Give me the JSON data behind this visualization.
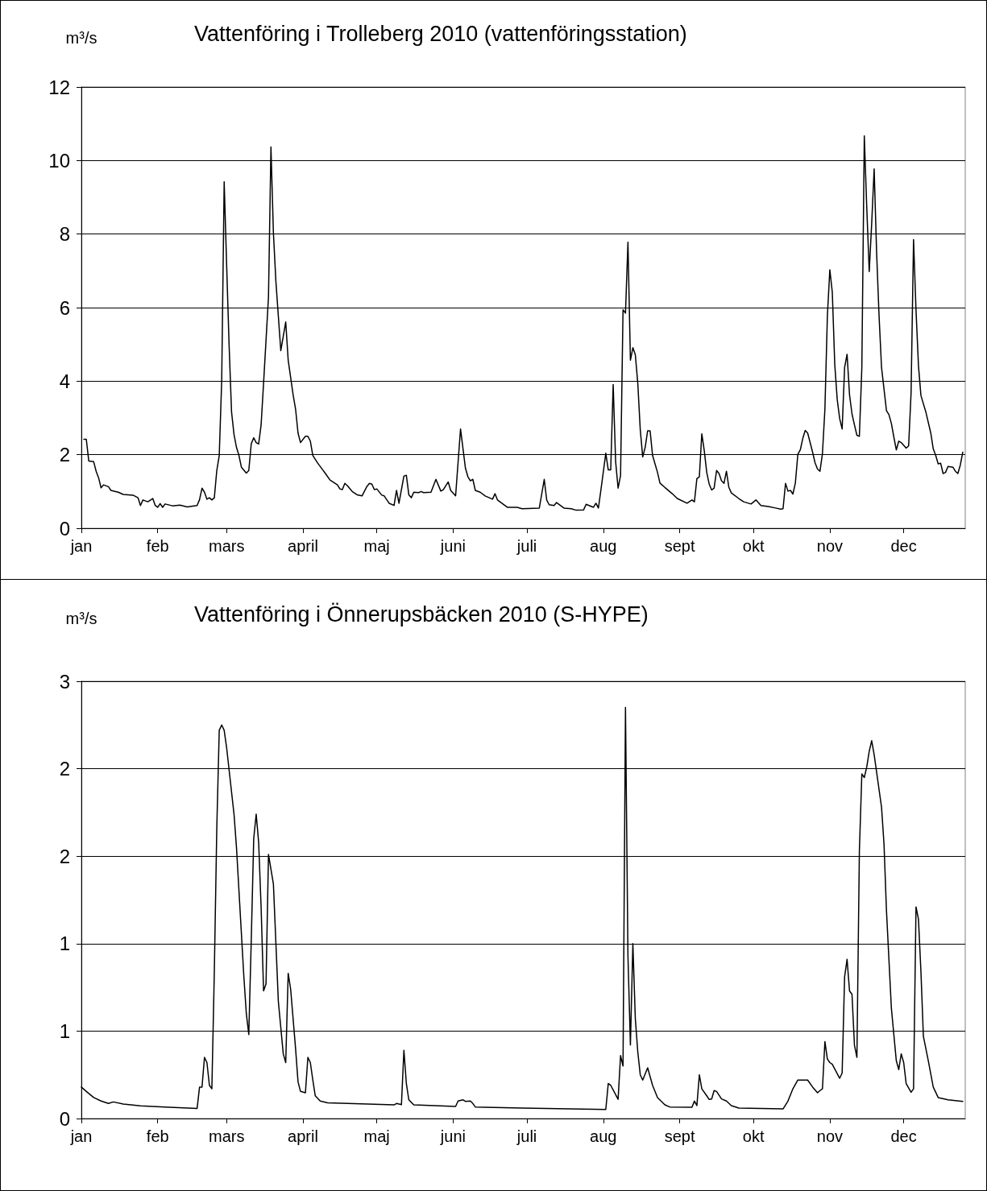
{
  "chart_data": [
    {
      "type": "line",
      "title": "Vattenföring i Trolleberg 2010 (vattenföringsstation)",
      "ylabel": "m³/s",
      "x": [
        "--01-02",
        "--01-03",
        "--01-04",
        "--01-06",
        "--01-07",
        "--01-08",
        "--01-09",
        "--01-10",
        "--01-12",
        "--01-13",
        "--01-16",
        "--01-18",
        "--01-22",
        "--01-24",
        "--01-25",
        "--01-26",
        "--01-28",
        "--01-30",
        "--01-31",
        "--02-01",
        "--02-02",
        "--02-03",
        "--02-04",
        "--02-07",
        "--02-10",
        "--02-13",
        "--02-17",
        "--02-18",
        "--02-19",
        "--02-20",
        "--02-21",
        "--02-22",
        "--02-23",
        "--02-24",
        "--02-25",
        "--02-26",
        "--02-27",
        "--02-28",
        "--03-01",
        "--03-02",
        "--03-03",
        "--03-04",
        "--03-05",
        "--03-06",
        "--03-07",
        "--03-09",
        "--03-10",
        "--03-11",
        "--03-12",
        "--03-13",
        "--03-14",
        "--03-15",
        "--03-16",
        "--03-18",
        "--03-19",
        "--03-20",
        "--03-21",
        "--03-22",
        "--03-23",
        "--03-25",
        "--03-26",
        "--03-28",
        "--03-29",
        "--03-30",
        "--03-31",
        "--04-02",
        "--04-03",
        "--04-04",
        "--04-05",
        "--04-07",
        "--04-09",
        "--04-10",
        "--04-12",
        "--04-15",
        "--04-16",
        "--04-17",
        "--04-18",
        "--04-19",
        "--04-21",
        "--04-23",
        "--04-25",
        "--04-27",
        "--04-28",
        "--04-29",
        "--04-30",
        "--05-01",
        "--05-03",
        "--05-04",
        "--05-06",
        "--05-08",
        "--05-09",
        "--05-10",
        "--05-12",
        "--05-13",
        "--05-14",
        "--05-15",
        "--05-16",
        "--05-18",
        "--05-19",
        "--05-20",
        "--05-23",
        "--05-25",
        "--05-27",
        "--05-28",
        "--05-30",
        "--05-31",
        "--06-02",
        "--06-04",
        "--06-06",
        "--06-07",
        "--06-08",
        "--06-09",
        "--06-10",
        "--06-12",
        "--06-14",
        "--06-17",
        "--06-18",
        "--06-19",
        "--06-23",
        "--06-27",
        "--06-29",
        "--07-06",
        "--07-08",
        "--07-09",
        "--07-10",
        "--07-12",
        "--07-13",
        "--07-16",
        "--07-19",
        "--07-21",
        "--07-24",
        "--07-25",
        "--07-28",
        "--07-29",
        "--07-30",
        "--07-31",
        "--08-02",
        "--08-03",
        "--08-04",
        "--08-05",
        "--08-06",
        "--08-07",
        "--08-08",
        "--08-09",
        "--08-10",
        "--08-11",
        "--08-12",
        "--08-13",
        "--08-14",
        "--08-15",
        "--08-16",
        "--08-17",
        "--08-18",
        "--08-19",
        "--08-20",
        "--08-21",
        "--08-23",
        "--08-24",
        "--08-26",
        "--08-29",
        "--08-31",
        "--09-04",
        "--09-06",
        "--09-07",
        "--09-08",
        "--09-09",
        "--09-10",
        "--09-11",
        "--09-12",
        "--09-13",
        "--09-14",
        "--09-15",
        "--09-16",
        "--09-17",
        "--09-18",
        "--09-19",
        "--09-20",
        "--09-21",
        "--09-22",
        "--09-25",
        "--09-27",
        "--09-30",
        "--10-02",
        "--10-04",
        "--10-07",
        "--10-10",
        "--10-12",
        "--10-13",
        "--10-14",
        "--10-15",
        "--10-16",
        "--10-17",
        "--10-18",
        "--10-19",
        "--10-20",
        "--10-21",
        "--10-22",
        "--10-23",
        "--10-25",
        "--10-26",
        "--10-27",
        "--10-28",
        "--10-29",
        "--10-30",
        "--10-31",
        "--11-01",
        "--11-02",
        "--11-03",
        "--11-04",
        "--11-05",
        "--11-06",
        "--11-07",
        "--11-08",
        "--11-09",
        "--11-10",
        "--11-11",
        "--11-12",
        "--11-13",
        "--11-14",
        "--11-15",
        "--11-16",
        "--11-17",
        "--11-18",
        "--11-19",
        "--11-20",
        "--11-21",
        "--11-22",
        "--11-24",
        "--11-25",
        "--11-26",
        "--11-27",
        "--11-28",
        "--11-29",
        "--11-30",
        "--12-02",
        "--12-03",
        "--12-04",
        "--12-05",
        "--12-06",
        "--12-07",
        "--12-08",
        "--12-10",
        "--12-12",
        "--12-13",
        "--12-14",
        "--12-15",
        "--12-16",
        "--12-17",
        "--12-18",
        "--12-19",
        "--12-21",
        "--12-22",
        "--12-23",
        "--12-24",
        "--12-25"
      ],
      "series": [
        {
          "color": "#000000",
          "values": [
            2.42,
            2.42,
            1.83,
            1.81,
            1.55,
            1.37,
            1.1,
            1.18,
            1.13,
            1.03,
            0.98,
            0.92,
            0.9,
            0.83,
            0.62,
            0.77,
            0.72,
            0.81,
            0.62,
            0.57,
            0.67,
            0.57,
            0.66,
            0.61,
            0.63,
            0.58,
            0.62,
            0.78,
            1.09,
            0.98,
            0.79,
            0.83,
            0.77,
            0.83,
            1.57,
            1.98,
            4.03,
            9.42,
            7.16,
            4.98,
            3.16,
            2.55,
            2.2,
            1.98,
            1.66,
            1.5,
            1.57,
            2.3,
            2.46,
            2.33,
            2.29,
            2.81,
            3.94,
            6.29,
            10.37,
            8.03,
            6.72,
            5.77,
            4.83,
            5.61,
            4.57,
            3.63,
            3.24,
            2.59,
            2.33,
            2.5,
            2.5,
            2.37,
            1.98,
            1.77,
            1.59,
            1.5,
            1.31,
            1.18,
            1.07,
            1.05,
            1.22,
            1.16,
            1.0,
            0.91,
            0.88,
            1.14,
            1.22,
            1.2,
            1.05,
            1.07,
            0.9,
            0.88,
            0.68,
            0.62,
            1.03,
            0.68,
            1.42,
            1.44,
            0.91,
            0.83,
            0.98,
            0.97,
            1.0,
            0.97,
            0.98,
            1.33,
            1.01,
            1.05,
            1.26,
            1.03,
            0.88,
            2.7,
            1.63,
            1.4,
            1.29,
            1.33,
            1.03,
            0.98,
            0.88,
            0.79,
            0.94,
            0.77,
            0.57,
            0.57,
            0.53,
            0.55,
            1.33,
            0.77,
            0.64,
            0.62,
            0.7,
            0.55,
            0.53,
            0.49,
            0.5,
            0.65,
            0.57,
            0.68,
            0.55,
            1.03,
            2.04,
            1.59,
            1.59,
            3.91,
            1.81,
            1.09,
            1.43,
            5.94,
            5.85,
            7.78,
            4.57,
            4.91,
            4.72,
            3.94,
            2.68,
            1.94,
            2.2,
            2.65,
            2.65,
            1.98,
            1.52,
            1.23,
            1.11,
            0.94,
            0.81,
            0.68,
            0.77,
            0.72,
            1.35,
            1.4,
            2.57,
            2.11,
            1.52,
            1.2,
            1.04,
            1.09,
            1.57,
            1.49,
            1.29,
            1.22,
            1.55,
            1.11,
            0.96,
            0.81,
            0.72,
            0.66,
            0.77,
            0.62,
            0.59,
            0.55,
            0.52,
            0.53,
            1.22,
            1.01,
            1.03,
            0.93,
            1.23,
            2.01,
            2.13,
            2.44,
            2.66,
            2.59,
            2.07,
            1.78,
            1.61,
            1.55,
            2.03,
            3.24,
            5.77,
            7.03,
            6.42,
            4.46,
            3.5,
            2.98,
            2.7,
            4.37,
            4.73,
            3.63,
            3.11,
            2.81,
            2.53,
            2.5,
            4.37,
            10.67,
            8.72,
            6.98,
            8.29,
            9.77,
            7.5,
            5.77,
            4.37,
            3.2,
            3.09,
            2.85,
            2.48,
            2.13,
            2.37,
            2.33,
            2.18,
            2.24,
            3.68,
            7.85,
            5.94,
            4.42,
            3.61,
            3.16,
            2.59,
            2.16,
            1.98,
            1.75,
            1.77,
            1.49,
            1.52,
            1.68,
            1.66,
            1.55,
            1.49,
            1.72,
            2.07
          ]
        }
      ],
      "xlim": [
        "--01-01",
        "--12-26"
      ],
      "xticks": [
        {
          "value": "--01-01",
          "label": "jan"
        },
        {
          "value": "--02-01",
          "label": "feb"
        },
        {
          "value": "--03-01",
          "label": "mars"
        },
        {
          "value": "--04-01",
          "label": "april"
        },
        {
          "value": "--05-01",
          "label": "maj"
        },
        {
          "value": "--06-01",
          "label": "juni"
        },
        {
          "value": "--07-01",
          "label": "juli"
        },
        {
          "value": "--08-01",
          "label": "aug"
        },
        {
          "value": "--09-01",
          "label": "sept"
        },
        {
          "value": "--10-01",
          "label": "okt"
        },
        {
          "value": "--11-01",
          "label": "nov"
        },
        {
          "value": "--12-01",
          "label": "dec"
        }
      ],
      "ylim": [
        0,
        12
      ],
      "yticks": [
        0,
        2,
        4,
        6,
        8,
        10,
        12
      ],
      "grid": "y",
      "marker": "none",
      "line_style": "solid"
    },
    {
      "type": "line",
      "title": "Vattenföring i Önnerupsbäcken 2010 (S-HYPE)",
      "ylabel": "m³/s",
      "x": [
        "--01-01",
        "--01-03",
        "--01-06",
        "--01-09",
        "--01-12",
        "--01-14",
        "--01-18",
        "--01-25",
        "--02-04",
        "--02-17",
        "--02-18",
        "--02-19",
        "--02-20",
        "--02-21",
        "--02-22",
        "--02-23",
        "--02-24",
        "--02-25",
        "--02-26",
        "--02-27",
        "--02-28",
        "--03-01",
        "--03-04",
        "--03-05",
        "--03-08",
        "--03-09",
        "--03-10",
        "--03-11",
        "--03-12",
        "--03-13",
        "--03-14",
        "--03-15",
        "--03-16",
        "--03-17",
        "--03-18",
        "--03-20",
        "--03-22",
        "--03-24",
        "--03-25",
        "--03-26",
        "--03-27",
        "--03-29",
        "--03-30",
        "--03-31",
        "--04-02",
        "--04-03",
        "--04-04",
        "--04-05",
        "--04-06",
        "--04-08",
        "--04-11",
        "--05-08",
        "--05-09",
        "--05-11",
        "--05-12",
        "--05-13",
        "--05-14",
        "--05-16",
        "--06-02",
        "--06-03",
        "--06-05",
        "--06-06",
        "--06-08",
        "--06-09",
        "--06-10",
        "--06-29",
        "--08-02",
        "--08-03",
        "--08-04",
        "--08-07",
        "--08-08",
        "--08-09",
        "--08-10",
        "--08-11",
        "--08-12",
        "--08-13",
        "--08-14",
        "--08-15",
        "--08-16",
        "--08-17",
        "--08-19",
        "--08-21",
        "--08-23",
        "--08-26",
        "--08-28",
        "--09-06",
        "--09-07",
        "--09-08",
        "--09-09",
        "--09-10",
        "--09-12",
        "--09-13",
        "--09-14",
        "--09-15",
        "--09-16",
        "--09-18",
        "--09-20",
        "--09-22",
        "--09-25",
        "--10-13",
        "--10-15",
        "--10-17",
        "--10-19",
        "--10-21",
        "--10-23",
        "--10-25",
        "--10-27",
        "--10-28",
        "--10-29",
        "--10-30",
        "--10-31",
        "--11-01",
        "--11-02",
        "--11-05",
        "--11-06",
        "--11-07",
        "--11-08",
        "--11-09",
        "--11-10",
        "--11-11",
        "--11-12",
        "--11-13",
        "--11-14",
        "--11-15",
        "--11-16",
        "--11-17",
        "--11-18",
        "--11-19",
        "--11-22",
        "--11-23",
        "--11-24",
        "--11-26",
        "--11-28",
        "--11-29",
        "--11-30",
        "--12-01",
        "--12-02",
        "--12-04",
        "--12-05",
        "--12-06",
        "--12-07",
        "--12-08",
        "--12-09",
        "--12-11",
        "--12-13",
        "--12-15",
        "--12-19",
        "--12-25"
      ],
      "series": [
        {
          "color": "#000000",
          "values": [
            0.18,
            0.155,
            0.12,
            0.1,
            0.086,
            0.095,
            0.083,
            0.072,
            0.066,
            0.057,
            0.18,
            0.18,
            0.35,
            0.32,
            0.19,
            0.17,
            0.84,
            1.66,
            2.22,
            2.25,
            2.22,
            2.12,
            1.74,
            1.55,
            0.81,
            0.6,
            0.48,
            1.02,
            1.6,
            1.74,
            1.58,
            1.21,
            0.73,
            0.77,
            1.51,
            1.34,
            0.67,
            0.37,
            0.32,
            0.83,
            0.74,
            0.4,
            0.21,
            0.155,
            0.147,
            0.35,
            0.32,
            0.22,
            0.13,
            0.1,
            0.09,
            0.078,
            0.086,
            0.079,
            0.39,
            0.2,
            0.107,
            0.078,
            0.069,
            0.1,
            0.107,
            0.098,
            0.1,
            0.086,
            0.066,
            0.06,
            0.052,
            0.2,
            0.19,
            0.11,
            0.36,
            0.3,
            2.35,
            0.93,
            0.42,
            1.0,
            0.57,
            0.38,
            0.25,
            0.22,
            0.29,
            0.19,
            0.12,
            0.078,
            0.066,
            0.064,
            0.1,
            0.074,
            0.25,
            0.17,
            0.13,
            0.109,
            0.112,
            0.16,
            0.155,
            0.112,
            0.1,
            0.074,
            0.06,
            0.055,
            0.1,
            0.17,
            0.22,
            0.22,
            0.22,
            0.18,
            0.147,
            0.16,
            0.17,
            0.44,
            0.34,
            0.32,
            0.31,
            0.23,
            0.26,
            0.81,
            0.91,
            0.73,
            0.71,
            0.42,
            0.35,
            1.53,
            1.97,
            1.95,
            2.01,
            2.1,
            2.16,
            2.08,
            1.78,
            1.57,
            1.19,
            0.63,
            0.33,
            0.28,
            0.37,
            0.32,
            0.2,
            0.15,
            0.17,
            1.21,
            1.14,
            0.84,
            0.47,
            0.33,
            0.18,
            0.12,
            0.107,
            0.098
          ]
        }
      ],
      "xlim": [
        "--01-01",
        "--12-26"
      ],
      "xticks": [
        {
          "value": "--01-01",
          "label": "jan"
        },
        {
          "value": "--02-01",
          "label": "feb"
        },
        {
          "value": "--03-01",
          "label": "mars"
        },
        {
          "value": "--04-01",
          "label": "april"
        },
        {
          "value": "--05-01",
          "label": "maj"
        },
        {
          "value": "--06-01",
          "label": "juni"
        },
        {
          "value": "--07-01",
          "label": "juli"
        },
        {
          "value": "--08-01",
          "label": "aug"
        },
        {
          "value": "--09-01",
          "label": "sept"
        },
        {
          "value": "--10-01",
          "label": "okt"
        },
        {
          "value": "--11-01",
          "label": "nov"
        },
        {
          "value": "--12-01",
          "label": "dec"
        }
      ],
      "ylim": [
        0,
        2.5
      ],
      "yticks": [
        0,
        {
          "value": 0.5,
          "label": "1"
        },
        1,
        {
          "value": 1.5,
          "label": "2"
        },
        2,
        {
          "value": 2.5,
          "label": "3"
        }
      ],
      "grid": "y",
      "marker": "none",
      "line_style": "solid"
    }
  ]
}
